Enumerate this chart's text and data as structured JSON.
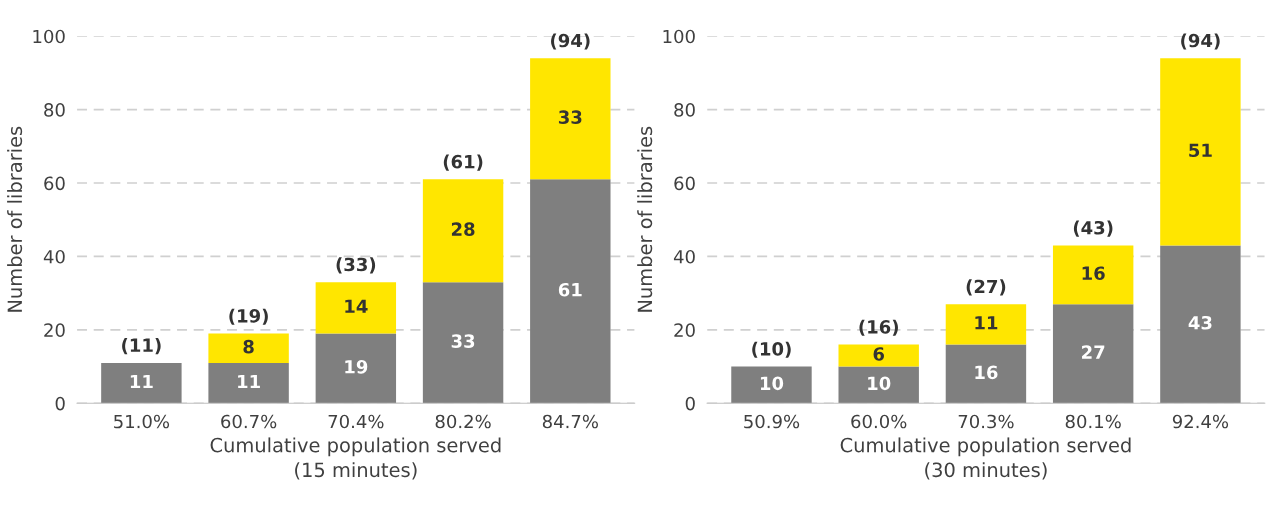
{
  "chart_data": [
    {
      "type": "bar",
      "stacked": true,
      "xlabel": "Cumulative population served\n(15 minutes)",
      "ylabel": "Number of libraries",
      "categories": [
        "51.0%",
        "60.7%",
        "70.4%",
        "80.2%",
        "84.7%"
      ],
      "series": [
        {
          "color": "#7f7f7f",
          "values": [
            11,
            11,
            19,
            33,
            61
          ]
        },
        {
          "color": "#ffe600",
          "values": [
            null,
            8,
            14,
            28,
            33
          ]
        }
      ],
      "totals": [
        "(11)",
        "(19)",
        "(33)",
        "(61)",
        "(94)"
      ],
      "data_labels": true,
      "ylim": [
        0,
        100
      ],
      "yticks": [
        0,
        20,
        40,
        60,
        80,
        100
      ],
      "grid": "y",
      "legend": false
    },
    {
      "type": "bar",
      "stacked": true,
      "xlabel": "Cumulative population served\n(30 minutes)",
      "ylabel": "Number of libraries",
      "categories": [
        "50.9%",
        "60.0%",
        "70.3%",
        "80.1%",
        "92.4%"
      ],
      "series": [
        {
          "color": "#7f7f7f",
          "values": [
            10,
            10,
            16,
            27,
            43
          ]
        },
        {
          "color": "#ffe600",
          "values": [
            null,
            6,
            11,
            16,
            51
          ]
        }
      ],
      "totals": [
        "(10)",
        "(16)",
        "(27)",
        "(43)",
        "(94)"
      ],
      "data_labels": true,
      "ylim": [
        0,
        100
      ],
      "yticks": [
        0,
        20,
        40,
        60,
        80,
        100
      ],
      "grid": "y",
      "legend": false
    }
  ]
}
